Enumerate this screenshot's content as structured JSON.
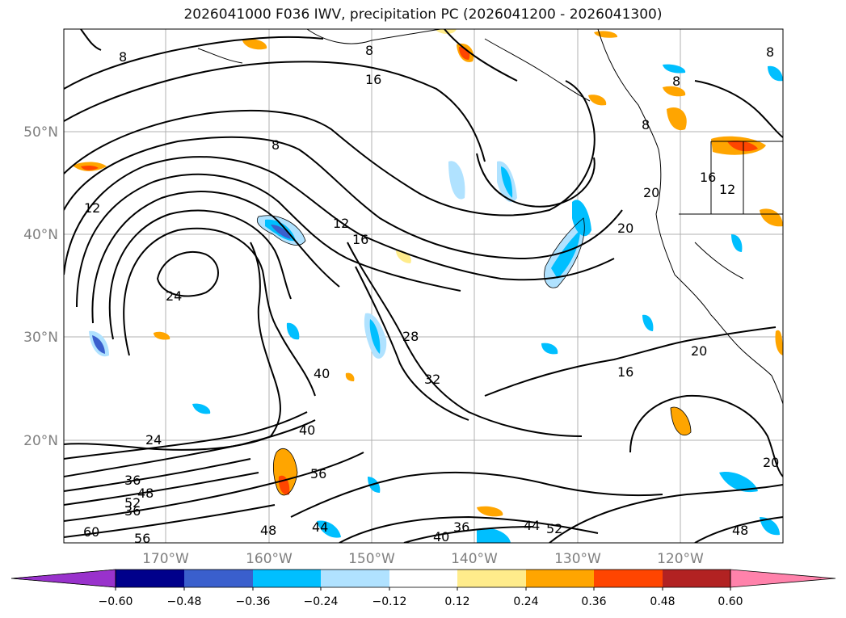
{
  "title": "2026041000 F036 IWV, precipitation PC (2026041200 - 2026041300)",
  "lat_labels": [
    "50°N",
    "40°N",
    "30°N",
    "20°N"
  ],
  "lon_labels": [
    "170°W",
    "160°W",
    "150°W",
    "140°W",
    "130°W",
    "120°W"
  ],
  "contour_labels": [
    "8",
    "8",
    "16",
    "8",
    "12",
    "12",
    "16",
    "24",
    "28",
    "32",
    "40",
    "40",
    "24",
    "36",
    "48",
    "52",
    "36",
    "56",
    "60",
    "56",
    "48",
    "44",
    "36",
    "40",
    "44",
    "52",
    "48",
    "20",
    "16",
    "20",
    "20",
    "16",
    "12",
    "8",
    "8",
    "8",
    "20"
  ],
  "colorbar": {
    "ticks": [
      "−0.60",
      "−0.48",
      "−0.36",
      "−0.24",
      "−0.12",
      "0.12",
      "0.24",
      "0.36",
      "0.48",
      "0.60"
    ],
    "colors": [
      "#9932cc",
      "#00008b",
      "#3a5fcd",
      "#00bfff",
      "#b0e2ff",
      "#ffffff",
      "#ffec8b",
      "#ffa500",
      "#ff4500",
      "#b22222",
      "#ff82ab"
    ]
  }
}
